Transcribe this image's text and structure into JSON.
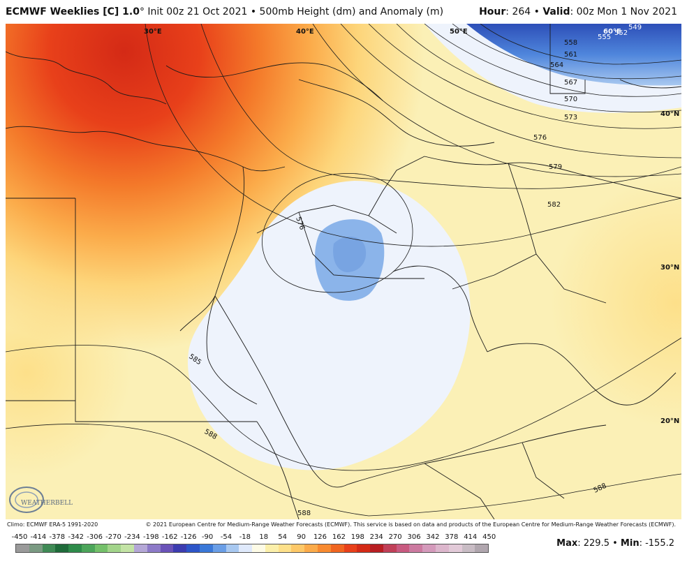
{
  "header": {
    "title_model": "ECMWF Weeklies [C] 1.0",
    "title_deg": "°",
    "title_rest": " Init 00z 21 Oct 2021 • 500mb Height (dm) and Anomaly (m)",
    "hour_label": "Hour",
    "hour_value": ": 264 • ",
    "valid_label": "Valid",
    "valid_value": ": 00z Mon 1 Nov 2021"
  },
  "map": {
    "longitude_labels": [
      "30°E",
      "40°E",
      "50°E",
      "60°E"
    ],
    "latitude_labels": [
      "40°N",
      "30°N",
      "20°N"
    ],
    "contour_labels": [
      "549",
      "552",
      "555",
      "558",
      "561",
      "564",
      "567",
      "570",
      "573",
      "576",
      "579",
      "582",
      "576",
      "585",
      "588",
      "588",
      "588"
    ],
    "logo_text": "WEATHERBELL"
  },
  "footer": {
    "climo": "Climo: ECMWF ERA-5 1991-2020",
    "copyright": "© 2021 European Centre for Medium-Range Weather Forecasts (ECMWF). This service is based on data and products of the European Centre for Medium-Range Weather Forecasts (ECMWF).",
    "max_label": "Max",
    "max_value": ": 229.5 • ",
    "min_label": "Min",
    "min_value": ": -155.2"
  },
  "colorbar": {
    "ticks": [
      "-450",
      "-414",
      "-378",
      "-342",
      "-306",
      "-270",
      "-234",
      "-198",
      "-162",
      "-126",
      "-90",
      "-54",
      "-18",
      "18",
      "54",
      "90",
      "126",
      "162",
      "198",
      "234",
      "270",
      "306",
      "342",
      "378",
      "414",
      "450"
    ],
    "colors": [
      "#9a9a9a",
      "#7a9a82",
      "#3f8a55",
      "#1f6b3a",
      "#2e8b4a",
      "#4ca55a",
      "#74c06a",
      "#a2d48a",
      "#c3e3a5",
      "#b4a7d6",
      "#8d7ac8",
      "#6a52b8",
      "#3c3cb0",
      "#2d55c8",
      "#3a78d8",
      "#6a9ee6",
      "#a8c8f0",
      "#dfe9fb",
      "#fdfbe6",
      "#fbefaa",
      "#fde08a",
      "#fdc868",
      "#fbab4a",
      "#f88a30",
      "#f06520",
      "#e8401a",
      "#d42a16",
      "#b81e22",
      "#c04058",
      "#c85a80",
      "#cc7aa0",
      "#d49abb",
      "#dcb6cc",
      "#e2cad8",
      "#c8bcc4",
      "#b0a6ae"
    ]
  }
}
